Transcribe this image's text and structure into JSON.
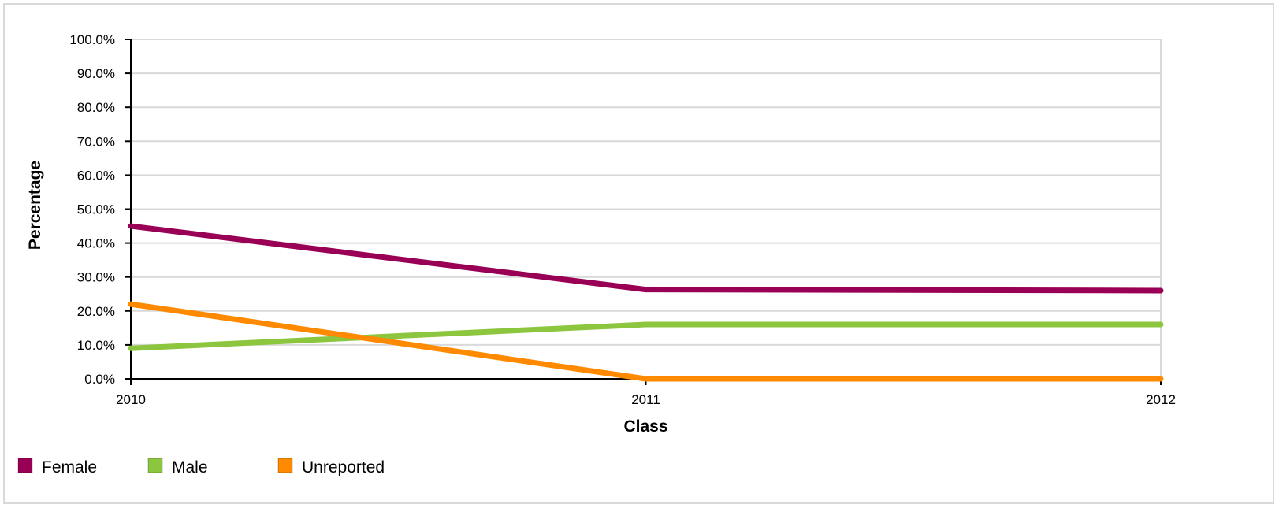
{
  "chart_data": {
    "type": "line",
    "title": "",
    "xlabel": "Class",
    "ylabel": "Percentage",
    "categories": [
      "2010",
      "2011",
      "2012"
    ],
    "ylim": [
      0,
      100
    ],
    "yticks": [
      "0.0%",
      "10.0%",
      "20.0%",
      "30.0%",
      "40.0%",
      "50.0%",
      "60.0%",
      "70.0%",
      "80.0%",
      "90.0%",
      "100.0%"
    ],
    "grid": true,
    "legend_position": "bottom-left",
    "series": [
      {
        "name": "Female",
        "color": "#990055",
        "values": [
          45.0,
          26.3,
          26.0
        ]
      },
      {
        "name": "Male",
        "color": "#8cc63f",
        "values": [
          9.0,
          16.0,
          16.0
        ]
      },
      {
        "name": "Unreported",
        "color": "#ff8a00",
        "values": [
          22.0,
          0.0,
          0.0
        ]
      }
    ]
  }
}
